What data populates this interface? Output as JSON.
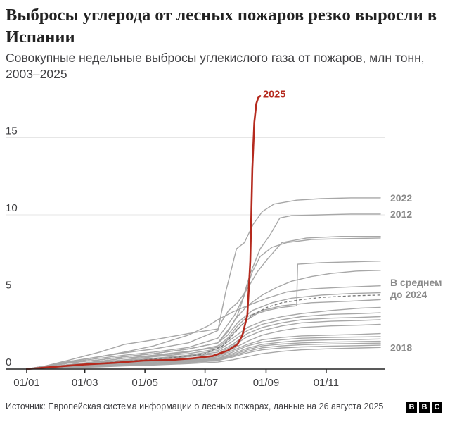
{
  "header": {
    "title": "Выбросы углерода от лесных пожаров резко выросли в Испании",
    "subtitle": "Совокупные недельные выбросы углекислого газа от пожаров, млн тонн, 2003–2025"
  },
  "footer": {
    "source": "Источник: Европейская система информации о лесных пожарах, данные на 26 августа 2025",
    "logo_letters": [
      "B",
      "B",
      "C"
    ]
  },
  "colors": {
    "highlight": "#b52a1e",
    "other_years": "#a7a7a7",
    "average": "#777777",
    "axis": "#222222",
    "grid": "#e6e6e6"
  },
  "chart_data": {
    "type": "line",
    "title": "",
    "xlabel": "",
    "ylabel": "",
    "xlim": [
      1,
      365
    ],
    "ylim": [
      0,
      18
    ],
    "x_ticks": [
      {
        "label": "01/01",
        "x": 1
      },
      {
        "label": "01/03",
        "x": 60
      },
      {
        "label": "01/05",
        "x": 121
      },
      {
        "label": "01/07",
        "x": 182
      },
      {
        "label": "01/09",
        "x": 244
      },
      {
        "label": "01/11",
        "x": 305
      }
    ],
    "y_ticks": [
      0,
      5,
      10,
      15
    ],
    "grid": "horizontal",
    "highlight": {
      "name": "2025",
      "x": [
        1,
        30,
        60,
        90,
        120,
        150,
        170,
        190,
        205,
        215,
        220,
        225,
        228,
        230,
        232,
        234,
        236,
        238
      ],
      "y": [
        0,
        0.15,
        0.3,
        0.4,
        0.55,
        0.6,
        0.7,
        0.85,
        1.2,
        1.6,
        2.2,
        3.5,
        7,
        13,
        16,
        17.2,
        17.6,
        17.7
      ]
    },
    "series": [
      {
        "name": "2022",
        "x": [
          1,
          20,
          45,
          75,
          100,
          130,
          165,
          195,
          203,
          214,
          222,
          231,
          240,
          252,
          275,
          300,
          330,
          360
        ],
        "y": [
          0,
          0.2,
          0.5,
          0.8,
          1.05,
          1.3,
          1.7,
          2.5,
          5.0,
          7.8,
          8.2,
          9.4,
          10.2,
          10.7,
          10.95,
          11.05,
          11.1,
          11.1
        ]
      },
      {
        "name": "2012",
        "x": [
          1,
          20,
          45,
          75,
          100,
          130,
          165,
          195,
          212,
          220,
          228,
          238,
          248,
          258,
          270,
          300,
          330,
          360
        ],
        "y": [
          0,
          0.2,
          0.45,
          0.7,
          0.9,
          1.1,
          1.4,
          2.0,
          3.5,
          4.5,
          6.2,
          7.8,
          8.7,
          9.8,
          9.95,
          10.0,
          10.05,
          10.05
        ]
      },
      {
        "name": "",
        "x": [
          1,
          20,
          45,
          75,
          100,
          130,
          165,
          195,
          200,
          206,
          215,
          225,
          235,
          245,
          260,
          285,
          320,
          360
        ],
        "y": [
          0,
          0.2,
          0.6,
          1.1,
          1.6,
          1.9,
          2.3,
          2.6,
          3.2,
          3.8,
          4.3,
          5.2,
          6.3,
          7.1,
          8.2,
          8.5,
          8.6,
          8.6
        ]
      },
      {
        "name": "",
        "x": [
          1,
          20,
          45,
          75,
          100,
          130,
          165,
          195,
          205,
          215,
          222,
          230,
          238,
          250,
          265,
          290,
          320,
          360
        ],
        "y": [
          0,
          0.15,
          0.4,
          0.6,
          0.8,
          1.0,
          1.3,
          1.7,
          2.4,
          3.5,
          4.8,
          6.3,
          7.3,
          7.9,
          8.2,
          8.4,
          8.45,
          8.5
        ]
      },
      {
        "name": "",
        "x": [
          1,
          20,
          45,
          75,
          100,
          130,
          165,
          195,
          205,
          215,
          225,
          235,
          245,
          260,
          275,
          276,
          300,
          330,
          360
        ],
        "y": [
          0,
          0.1,
          0.3,
          0.5,
          0.7,
          0.9,
          1.15,
          1.4,
          1.9,
          2.6,
          3.2,
          3.6,
          3.8,
          4.0,
          4.1,
          6.8,
          6.9,
          6.95,
          7.0
        ]
      },
      {
        "name": "",
        "x": [
          1,
          20,
          45,
          75,
          100,
          130,
          165,
          195,
          205,
          215,
          225,
          240,
          255,
          270,
          290,
          310,
          335,
          360
        ],
        "y": [
          0,
          0.15,
          0.4,
          0.6,
          0.8,
          1.0,
          1.3,
          1.7,
          2.5,
          3.4,
          4.1,
          4.8,
          5.3,
          5.7,
          6.0,
          6.2,
          6.35,
          6.4
        ]
      },
      {
        "name": "",
        "x": [
          1,
          20,
          45,
          75,
          100,
          130,
          165,
          185,
          195,
          210,
          225,
          245,
          265,
          290,
          320,
          360
        ],
        "y": [
          0,
          0.2,
          0.5,
          0.8,
          1.1,
          1.5,
          2.2,
          2.8,
          3.2,
          3.7,
          4.1,
          4.6,
          5.0,
          5.2,
          5.3,
          5.4
        ]
      },
      {
        "name": "",
        "x": [
          1,
          20,
          45,
          75,
          100,
          130,
          165,
          195,
          205,
          215,
          230,
          250,
          270,
          300,
          330,
          360
        ],
        "y": [
          0,
          0.15,
          0.4,
          0.6,
          0.8,
          1.0,
          1.3,
          1.7,
          2.2,
          3.0,
          3.8,
          4.3,
          4.6,
          4.8,
          4.9,
          4.95
        ]
      },
      {
        "name": "",
        "x": [
          1,
          20,
          45,
          75,
          100,
          130,
          165,
          195,
          205,
          215,
          225,
          240,
          260,
          290,
          330,
          360
        ],
        "y": [
          0,
          0.1,
          0.3,
          0.5,
          0.7,
          0.85,
          1.1,
          1.5,
          2.0,
          2.8,
          3.4,
          3.8,
          4.1,
          4.3,
          4.4,
          4.5
        ]
      },
      {
        "name": "",
        "x": [
          1,
          20,
          45,
          75,
          100,
          130,
          165,
          195,
          210,
          225,
          240,
          260,
          280,
          310,
          340,
          360
        ],
        "y": [
          0,
          0.1,
          0.3,
          0.45,
          0.6,
          0.8,
          1.0,
          1.3,
          2.0,
          2.7,
          3.1,
          3.4,
          3.6,
          3.8,
          3.95,
          4.0
        ]
      },
      {
        "name": "",
        "x": [
          1,
          20,
          45,
          75,
          100,
          130,
          165,
          195,
          210,
          225,
          240,
          260,
          280,
          310,
          340,
          360
        ],
        "y": [
          0,
          0.1,
          0.25,
          0.4,
          0.55,
          0.7,
          0.9,
          1.2,
          1.8,
          2.5,
          2.9,
          3.2,
          3.4,
          3.55,
          3.6,
          3.65
        ]
      },
      {
        "name": "",
        "x": [
          1,
          20,
          45,
          75,
          100,
          130,
          165,
          195,
          210,
          225,
          240,
          260,
          280,
          310,
          340,
          360
        ],
        "y": [
          0,
          0.1,
          0.25,
          0.4,
          0.5,
          0.65,
          0.85,
          1.1,
          1.6,
          2.3,
          2.7,
          3.0,
          3.2,
          3.3,
          3.35,
          3.4
        ]
      },
      {
        "name": "",
        "x": [
          1,
          20,
          45,
          75,
          100,
          130,
          165,
          195,
          210,
          225,
          240,
          260,
          280,
          310,
          340,
          360
        ],
        "y": [
          0,
          0.1,
          0.2,
          0.35,
          0.45,
          0.6,
          0.8,
          1.0,
          1.5,
          2.1,
          2.5,
          2.8,
          3.0,
          3.1,
          3.15,
          3.2
        ]
      },
      {
        "name": "",
        "x": [
          1,
          20,
          45,
          75,
          100,
          130,
          165,
          195,
          210,
          225,
          240,
          260,
          280,
          310,
          340,
          360
        ],
        "y": [
          0,
          0.08,
          0.2,
          0.3,
          0.4,
          0.55,
          0.7,
          0.9,
          1.3,
          1.8,
          2.2,
          2.5,
          2.7,
          2.8,
          2.85,
          2.9
        ]
      },
      {
        "name": "",
        "x": [
          1,
          20,
          45,
          75,
          100,
          130,
          165,
          195,
          210,
          225,
          240,
          260,
          280,
          310,
          340,
          360
        ],
        "y": [
          0,
          0.08,
          0.18,
          0.28,
          0.38,
          0.5,
          0.65,
          0.85,
          1.2,
          1.6,
          1.9,
          2.05,
          2.15,
          2.2,
          2.25,
          2.3
        ]
      },
      {
        "name": "",
        "x": [
          1,
          20,
          45,
          75,
          100,
          130,
          165,
          195,
          210,
          225,
          240,
          260,
          280,
          310,
          340,
          360
        ],
        "y": [
          0,
          0.07,
          0.16,
          0.25,
          0.34,
          0.45,
          0.6,
          0.78,
          1.1,
          1.5,
          1.75,
          1.9,
          2.0,
          2.05,
          2.08,
          2.1
        ]
      },
      {
        "name": "",
        "x": [
          1,
          20,
          45,
          75,
          100,
          130,
          165,
          195,
          210,
          225,
          240,
          260,
          280,
          310,
          340,
          360
        ],
        "y": [
          0,
          0.06,
          0.14,
          0.22,
          0.3,
          0.4,
          0.55,
          0.7,
          1.0,
          1.35,
          1.6,
          1.75,
          1.85,
          1.9,
          1.92,
          1.95
        ]
      },
      {
        "name": "",
        "x": [
          1,
          20,
          45,
          75,
          100,
          130,
          165,
          195,
          210,
          225,
          240,
          260,
          280,
          310,
          340,
          360
        ],
        "y": [
          0,
          0.06,
          0.13,
          0.2,
          0.28,
          0.37,
          0.5,
          0.65,
          0.92,
          1.25,
          1.5,
          1.62,
          1.7,
          1.75,
          1.78,
          1.8
        ]
      },
      {
        "name": "",
        "x": [
          1,
          20,
          45,
          75,
          100,
          130,
          165,
          195,
          210,
          225,
          240,
          260,
          280,
          310,
          340,
          360
        ],
        "y": [
          0,
          0.05,
          0.12,
          0.18,
          0.25,
          0.33,
          0.45,
          0.6,
          0.85,
          1.15,
          1.38,
          1.5,
          1.58,
          1.63,
          1.66,
          1.68
        ]
      },
      {
        "name": "",
        "x": [
          1,
          20,
          45,
          75,
          100,
          130,
          165,
          195,
          210,
          225,
          240,
          260,
          280,
          310,
          340,
          360
        ],
        "y": [
          0,
          0.05,
          0.1,
          0.16,
          0.22,
          0.3,
          0.4,
          0.55,
          0.78,
          1.05,
          1.25,
          1.37,
          1.44,
          1.49,
          1.52,
          1.55
        ]
      },
      {
        "name": "2018",
        "x": [
          1,
          20,
          45,
          75,
          100,
          130,
          165,
          195,
          210,
          225,
          240,
          260,
          280,
          310,
          340,
          360
        ],
        "y": [
          0,
          0.04,
          0.09,
          0.14,
          0.2,
          0.26,
          0.35,
          0.45,
          0.6,
          0.8,
          1.0,
          1.15,
          1.25,
          1.32,
          1.37,
          1.4
        ]
      }
    ],
    "average": {
      "name": "В среднем до 2024",
      "x": [
        1,
        30,
        60,
        90,
        120,
        150,
        180,
        200,
        210,
        220,
        230,
        245,
        260,
        280,
        300,
        330,
        360
      ],
      "y": [
        0,
        0.12,
        0.3,
        0.45,
        0.6,
        0.75,
        0.95,
        1.5,
        2.2,
        2.9,
        3.5,
        4.0,
        4.3,
        4.5,
        4.65,
        4.75,
        4.8
      ]
    },
    "labels": [
      {
        "text": "2022"
      },
      {
        "text": "2012"
      },
      {
        "text": "В среднем"
      },
      {
        "text": "до 2024"
      },
      {
        "text": "2018"
      }
    ]
  }
}
